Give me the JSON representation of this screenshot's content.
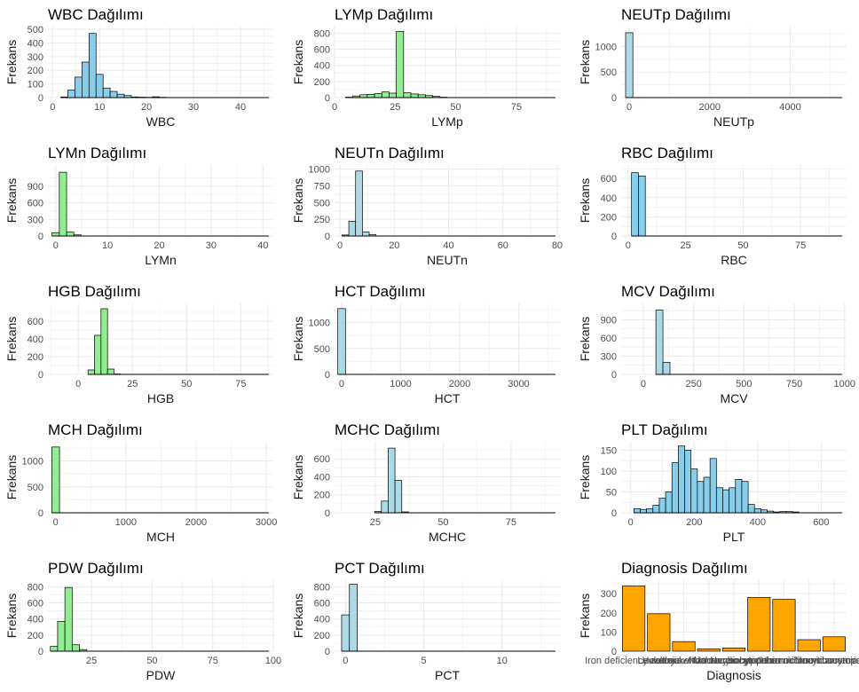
{
  "ylabel": "Frekans",
  "colors": {
    "blue": "#87ceeb",
    "green": "#90ee90",
    "lightblue": "#add8e6",
    "orange": "#ffa500",
    "grid": "#ebebeb",
    "outline": "#000000"
  },
  "chart_data": [
    {
      "type": "bar",
      "title": "WBC Dağılımı",
      "xlabel": "WBC",
      "ylabel": "Frekans",
      "color": "#87ceeb",
      "xlim": [
        -1,
        47
      ],
      "ylim": [
        0,
        520
      ],
      "xticks": [
        0,
        10,
        20,
        30,
        40
      ],
      "yticks": [
        0,
        100,
        200,
        300,
        400,
        500
      ],
      "x": [
        2.5,
        4.0,
        5.5,
        7.0,
        8.5,
        10.0,
        11.5,
        13.0,
        14.5,
        16.0,
        17.5,
        19.0,
        20.5,
        22.0,
        23.5
      ],
      "values": [
        5,
        55,
        150,
        260,
        470,
        170,
        70,
        45,
        25,
        15,
        5,
        3,
        2,
        6,
        2
      ],
      "bin_width": 1.5
    },
    {
      "type": "bar",
      "title": "LYMp Dağılımı",
      "xlabel": "LYMp",
      "ylabel": "Frekans",
      "color": "#90ee90",
      "xlim": [
        0,
        93
      ],
      "ylim": [
        0,
        880
      ],
      "xticks": [
        0,
        25,
        50,
        75
      ],
      "yticks": [
        0,
        200,
        400,
        600,
        800
      ],
      "x": [
        6,
        9,
        12,
        15,
        18,
        21,
        24,
        27,
        30,
        33,
        36,
        39,
        42,
        45
      ],
      "values": [
        5,
        20,
        35,
        40,
        50,
        70,
        55,
        820,
        60,
        45,
        35,
        25,
        15,
        5
      ],
      "bin_width": 3
    },
    {
      "type": "bar",
      "title": "NEUTp Dağılımı",
      "xlabel": "NEUTp",
      "ylabel": "Frekans",
      "color": "#add8e6",
      "xlim": [
        -200,
        5400
      ],
      "ylim": [
        0,
        1390
      ],
      "xticks": [
        0,
        2000,
        4000
      ],
      "yticks": [
        0,
        500,
        1000
      ],
      "x": [
        0
      ],
      "values": [
        1270
      ],
      "bin_width": 180
    },
    {
      "type": "bar",
      "title": "LYMn Dağılımı",
      "xlabel": "LYMn",
      "ylabel": "Frekans",
      "color": "#90ee90",
      "xlim": [
        -1.5,
        42
      ],
      "ylim": [
        0,
        1280
      ],
      "xticks": [
        0,
        10,
        20,
        30,
        40
      ],
      "yticks": [
        0,
        300,
        600,
        900
      ],
      "x": [
        0,
        1.4,
        2.8,
        4.2
      ],
      "values": [
        60,
        1150,
        70,
        20
      ],
      "bin_width": 1.4
    },
    {
      "type": "bar",
      "title": "NEUTn Dağılımı",
      "xlabel": "NEUTn",
      "ylabel": "Frekans",
      "color": "#add8e6",
      "xlim": [
        -2,
        81
      ],
      "ylim": [
        0,
        1060
      ],
      "xticks": [
        0,
        20,
        40,
        60,
        80
      ],
      "yticks": [
        0,
        250,
        500,
        750,
        1000
      ],
      "x": [
        2,
        4.5,
        7,
        9.5,
        12
      ],
      "values": [
        15,
        220,
        970,
        60,
        20
      ],
      "bin_width": 2.5
    },
    {
      "type": "bar",
      "title": "RBC Dağılımı",
      "xlabel": "RBC",
      "ylabel": "Frekans",
      "color": "#87ceeb",
      "xlim": [
        -3,
        95
      ],
      "ylim": [
        0,
        740
      ],
      "xticks": [
        0,
        25,
        50,
        75
      ],
      "yticks": [
        0,
        200,
        400,
        600
      ],
      "x": [
        3,
        6
      ],
      "values": [
        660,
        625
      ],
      "bin_width": 3
    },
    {
      "type": "bar",
      "title": "HGB Dağılımı",
      "xlabel": "HGB",
      "ylabel": "Frekans",
      "color": "#90ee90",
      "xlim": [
        -14,
        90
      ],
      "ylim": [
        0,
        800
      ],
      "xticks": [
        0,
        25,
        50,
        75
      ],
      "yticks": [
        0,
        200,
        400,
        600
      ],
      "x": [
        6,
        9,
        12,
        15,
        18
      ],
      "values": [
        50,
        440,
        740,
        60,
        5
      ],
      "bin_width": 3
    },
    {
      "type": "bar",
      "title": "HCT Dağılımı",
      "xlabel": "HCT",
      "ylabel": "Frekans",
      "color": "#add8e6",
      "xlim": [
        -120,
        3700
      ],
      "ylim": [
        0,
        1370
      ],
      "xticks": [
        0,
        1000,
        2000,
        3000
      ],
      "yticks": [
        0,
        500,
        1000
      ],
      "x": [
        0
      ],
      "values": [
        1270
      ],
      "bin_width": 130
    },
    {
      "type": "bar",
      "title": "MCV Dağılımı",
      "xlabel": "MCV",
      "ylabel": "Frekans",
      "color": "#add8e6",
      "xlim": [
        -110,
        1010
      ],
      "ylim": [
        0,
        1170
      ],
      "xticks": [
        0,
        250,
        500,
        750,
        1000
      ],
      "yticks": [
        0,
        300,
        600,
        900
      ],
      "x": [
        80,
        115
      ],
      "values": [
        1060,
        200
      ],
      "bin_width": 35
    },
    {
      "type": "bar",
      "title": "MCH Dağılımı",
      "xlabel": "MCH",
      "ylabel": "Frekans",
      "color": "#90ee90",
      "xlim": [
        -110,
        3100
      ],
      "ylim": [
        0,
        1370
      ],
      "xticks": [
        0,
        1000,
        2000,
        3000
      ],
      "yticks": [
        0,
        500,
        1000
      ],
      "x": [
        0
      ],
      "values": [
        1270
      ],
      "bin_width": 110
    },
    {
      "type": "bar",
      "title": "MCHC Dağılımı",
      "xlabel": "MCHC",
      "ylabel": "Frekans",
      "color": "#add8e6",
      "xlim": [
        10,
        93
      ],
      "ylim": [
        0,
        790
      ],
      "xticks": [
        25,
        50,
        75
      ],
      "yticks": [
        0,
        200,
        400,
        600
      ],
      "x": [
        26,
        28.5,
        31,
        33.5,
        36
      ],
      "values": [
        15,
        130,
        720,
        360,
        10
      ],
      "bin_width": 2.5
    },
    {
      "type": "bar",
      "title": "PLT Dağılımı",
      "xlabel": "PLT",
      "ylabel": "Frekans",
      "color": "#87ceeb",
      "xlim": [
        -30,
        680
      ],
      "ylim": [
        0,
        170
      ],
      "xticks": [
        0,
        200,
        400,
        600
      ],
      "yticks": [
        0,
        50,
        100,
        150
      ],
      "x": [
        20,
        40,
        60,
        80,
        100,
        120,
        140,
        160,
        180,
        200,
        220,
        240,
        260,
        280,
        300,
        320,
        340,
        360,
        380,
        400,
        420,
        440,
        460,
        480,
        500,
        520,
        540
      ],
      "values": [
        10,
        8,
        10,
        18,
        35,
        50,
        120,
        160,
        150,
        105,
        75,
        85,
        130,
        60,
        55,
        60,
        80,
        75,
        20,
        10,
        7,
        4,
        2,
        3,
        3,
        2,
        0
      ],
      "bin_width": 20
    },
    {
      "type": "bar",
      "title": "PDW Dağılımı",
      "xlabel": "PDW",
      "ylabel": "Frekans",
      "color": "#90ee90",
      "xlim": [
        7,
        100
      ],
      "ylim": [
        0,
        880
      ],
      "xticks": [
        25,
        50,
        75,
        100
      ],
      "yticks": [
        0,
        200,
        400,
        600,
        800
      ],
      "x": [
        9.5,
        12.5,
        15.5,
        18.5,
        21.5
      ],
      "values": [
        60,
        370,
        790,
        80,
        20
      ],
      "bin_width": 3
    },
    {
      "type": "bar",
      "title": "PCT Dağılımı",
      "xlabel": "PCT",
      "ylabel": "Frekans",
      "color": "#add8e6",
      "xlim": [
        -0.7,
        13.7
      ],
      "ylim": [
        0,
        880
      ],
      "xticks": [
        0,
        5,
        10
      ],
      "yticks": [
        0,
        200,
        400,
        600,
        800
      ],
      "x": [
        0,
        0.5
      ],
      "values": [
        450,
        830
      ],
      "bin_width": 0.5
    },
    {
      "type": "bar",
      "title": "Diagnosis Dağılımı",
      "xlabel": "Diagnosis",
      "ylabel": "Frekans",
      "color": "#ffa500",
      "ylim": [
        0,
        370
      ],
      "yticks": [
        0,
        100,
        200,
        300
      ],
      "categories": [
        "Iron deficiency anemia",
        "Healthy",
        "Leukemia",
        "Leukemia with thrombocytopenia",
        "Macrocytic anemia",
        "Normocytic hypochromic anemia",
        "Normocytic normochromic anemia",
        "Other microcytic anemia",
        "Thrombocytopenia"
      ],
      "values": [
        340,
        195,
        50,
        12,
        17,
        280,
        270,
        60,
        75
      ]
    }
  ]
}
